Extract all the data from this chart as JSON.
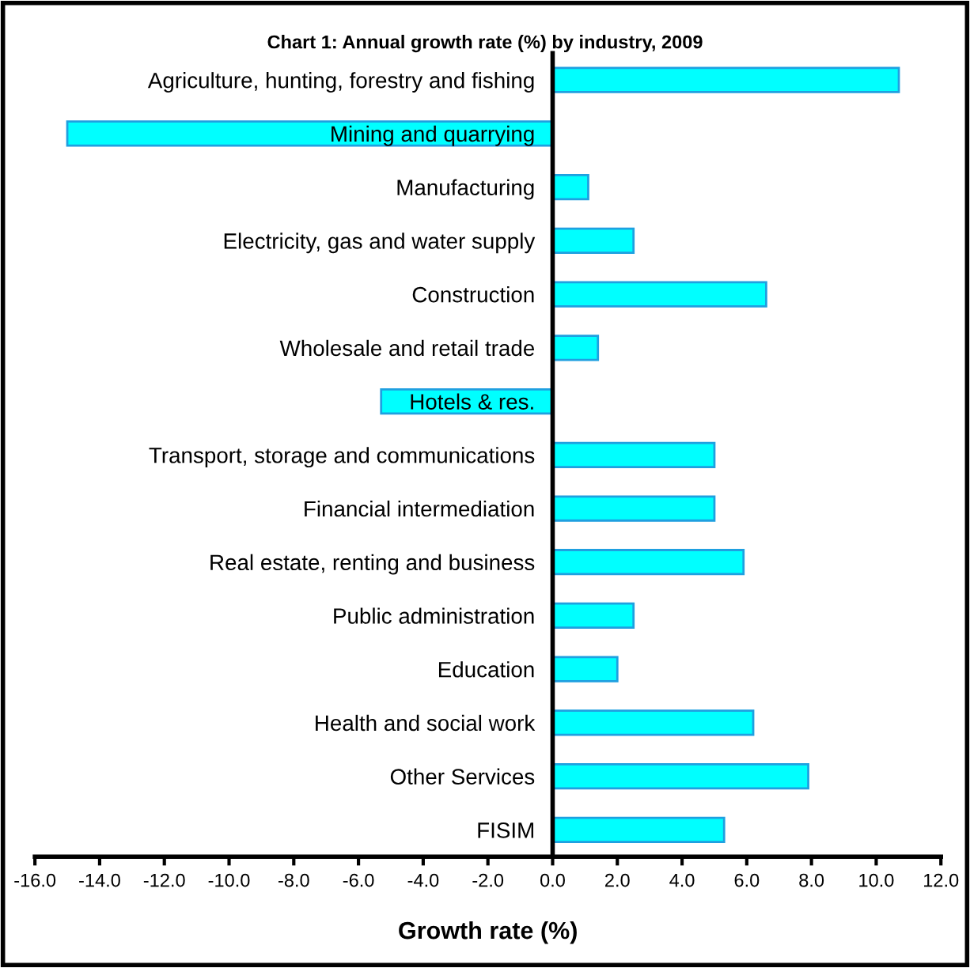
{
  "chart_data": {
    "type": "bar",
    "orientation": "horizontal",
    "title": "Chart 1: Annual growth rate (%) by industry, 2009",
    "xlabel": "Growth rate (%)",
    "categories": [
      "Agriculture, hunting, forestry and fishing",
      "Mining and quarrying",
      "Manufacturing",
      "Electricity, gas and water supply",
      "Construction",
      "Wholesale and retail trade",
      "Hotels & res.",
      "Transport, storage and communications",
      "Financial intermediation",
      "Real estate, renting and business",
      "Public administration",
      "Education",
      "Health and social work",
      "Other Services",
      "FISIM"
    ],
    "values": [
      10.7,
      -15.0,
      1.1,
      2.5,
      6.6,
      1.4,
      -5.3,
      5.0,
      5.0,
      5.9,
      2.5,
      2.0,
      6.2,
      7.9,
      5.3
    ],
    "color": "#00ffff",
    "xlim": [
      -16,
      12
    ],
    "xticks": [
      {
        "value": -16,
        "label": "-16.0"
      },
      {
        "value": -14,
        "label": "-14.0"
      },
      {
        "value": -12,
        "label": "-12.0"
      },
      {
        "value": -10,
        "label": "-10.0"
      },
      {
        "value": -8,
        "label": "-8.0"
      },
      {
        "value": -6,
        "label": "-6.0"
      },
      {
        "value": -4,
        "label": "-4.0"
      },
      {
        "value": -2,
        "label": "-2.0"
      },
      {
        "value": 0,
        "label": "0.0"
      },
      {
        "value": 2,
        "label": "2.0"
      },
      {
        "value": 4,
        "label": "4.0"
      },
      {
        "value": 6,
        "label": "6.0"
      },
      {
        "value": 8,
        "label": "8.0"
      },
      {
        "value": 10,
        "label": "10.0"
      },
      {
        "value": 12,
        "label": "12.0"
      }
    ],
    "grid": false,
    "legend": false
  }
}
